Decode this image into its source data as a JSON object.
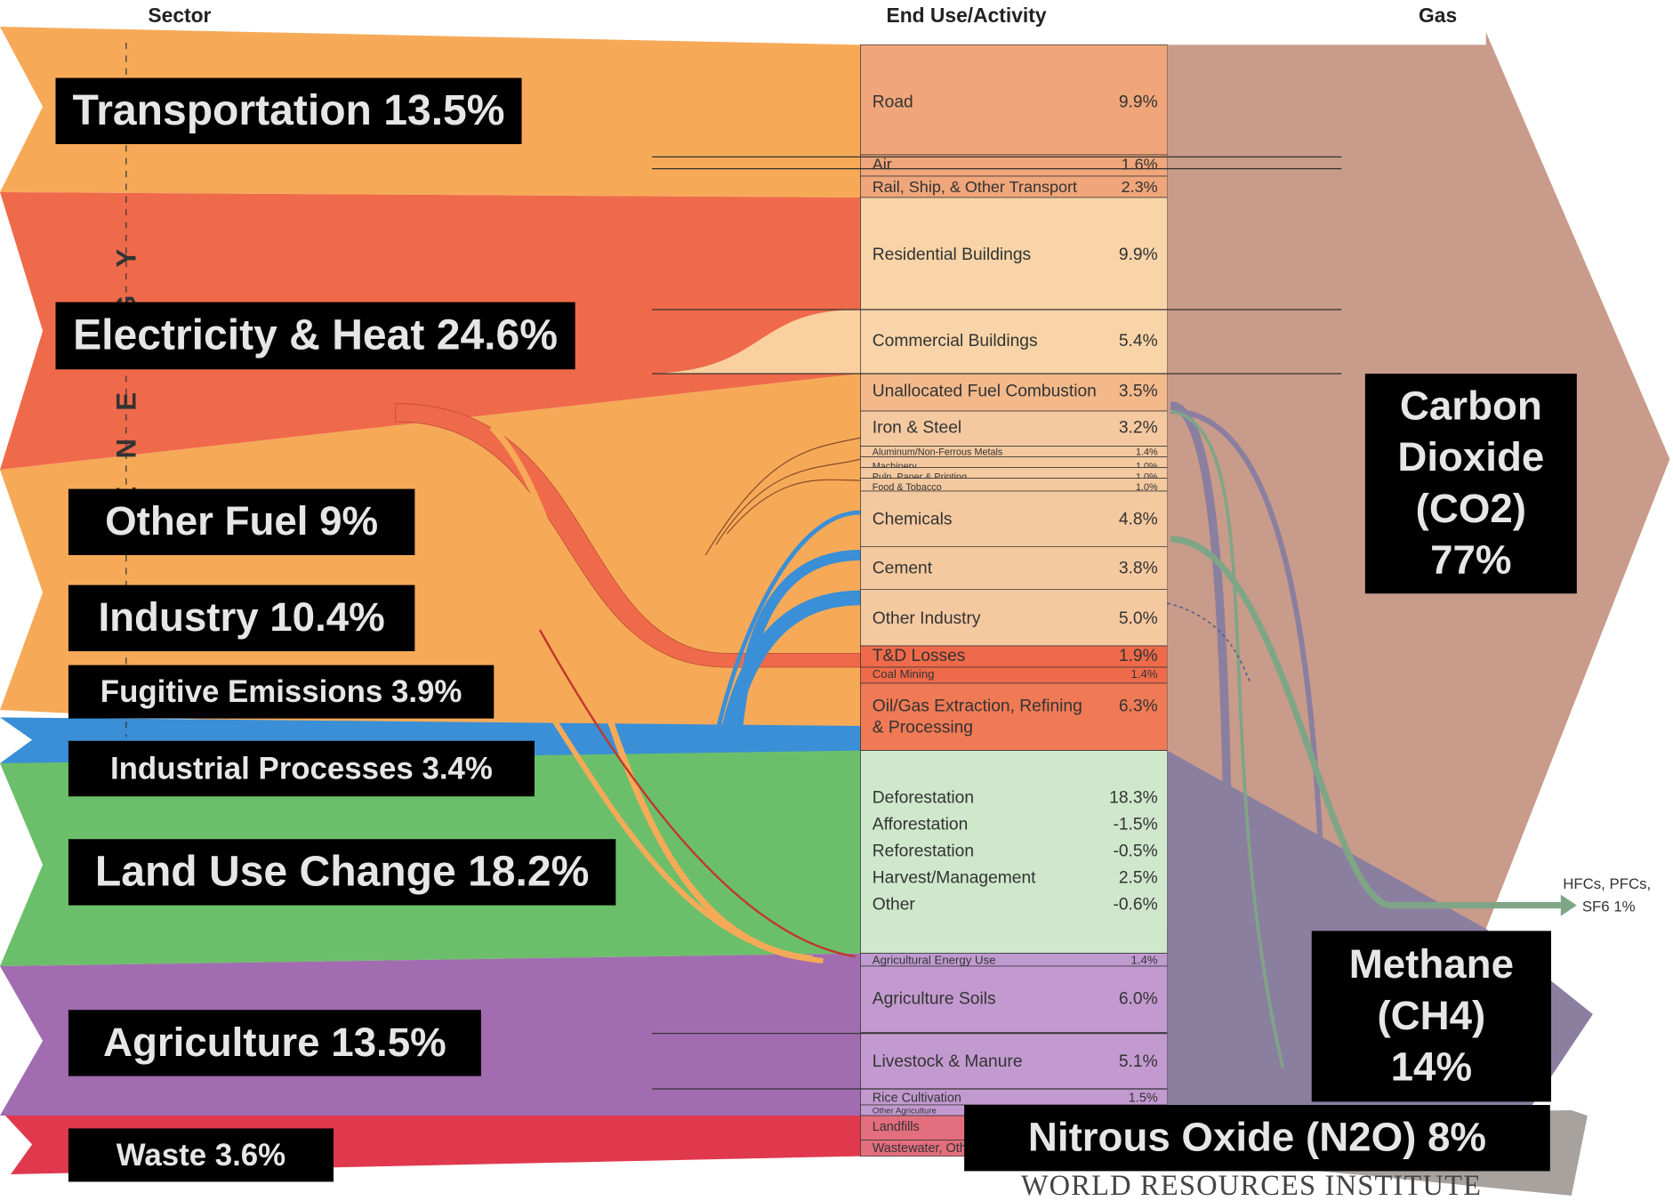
{
  "headers": {
    "sector": "Sector",
    "end_use": "End Use/Activity",
    "gas": "Gas"
  },
  "energy_label": "ENERGY",
  "sectors": [
    "Transportation 13.5%",
    "Electricity & Heat 24.6%",
    "Other Fuel 9%",
    "Industry 10.4%",
    "Fugitive Emissions 3.9%",
    "Industrial Processes 3.4%",
    "Land Use Change 18.2%",
    "Agriculture 13.5%",
    "Waste 3.6%"
  ],
  "end_uses": [
    {
      "name": "Road",
      "pct": "9.9%"
    },
    {
      "name": "Air",
      "pct": "1.6%"
    },
    {
      "name": "Rail, Ship, & Other Transport",
      "pct": "2.3%"
    },
    {
      "name": "Residential Buildings",
      "pct": "9.9%"
    },
    {
      "name": "Commercial Buildings",
      "pct": "5.4%"
    },
    {
      "name": "Unallocated Fuel Combustion",
      "pct": "3.5%"
    },
    {
      "name": "Iron & Steel",
      "pct": "3.2%"
    },
    {
      "name": "Aluminum/Non-Ferrous Metals",
      "pct": "1.4%"
    },
    {
      "name": "Machinery",
      "pct": "1.0%"
    },
    {
      "name": "Pulp, Paper & Printing",
      "pct": "1.0%"
    },
    {
      "name": "Food & Tobacco",
      "pct": "1.0%"
    },
    {
      "name": "Chemicals",
      "pct": "4.8%"
    },
    {
      "name": "Cement",
      "pct": "3.8%"
    },
    {
      "name": "Other Industry",
      "pct": "5.0%"
    },
    {
      "name": "T&D Losses",
      "pct": "1.9%"
    },
    {
      "name": "Coal Mining",
      "pct": "1.4%"
    },
    {
      "name": "Oil/Gas Extraction, Refining & Processing",
      "pct": "6.3%"
    },
    {
      "name": "Deforestation",
      "pct": "18.3%"
    },
    {
      "name": "Afforestation",
      "pct": "-1.5%"
    },
    {
      "name": "Reforestation",
      "pct": "-0.5%"
    },
    {
      "name": "Harvest/Management",
      "pct": "2.5%"
    },
    {
      "name": "Other",
      "pct": "-0.6%"
    },
    {
      "name": "Agricultural Energy Use",
      "pct": "1.4%"
    },
    {
      "name": "Agriculture Soils",
      "pct": "6.0%"
    },
    {
      "name": "Livestock & Manure",
      "pct": "5.1%"
    },
    {
      "name": "Rice Cultivation",
      "pct": "1.5%"
    },
    {
      "name": "Other Agriculture"
    },
    {
      "name": "Landfills"
    },
    {
      "name": "Wastewater, Other Waste"
    }
  ],
  "gases": [
    "Carbon Dioxide (CO2) 77%",
    "Methane (CH4) 14%",
    "Nitrous Oxide (N2O) 8%"
  ],
  "hfc": {
    "line1": "HFCs, PFCs,",
    "line2": "SF6 1%"
  },
  "footer": "WORLD RESOURCES INSTITUTE"
}
